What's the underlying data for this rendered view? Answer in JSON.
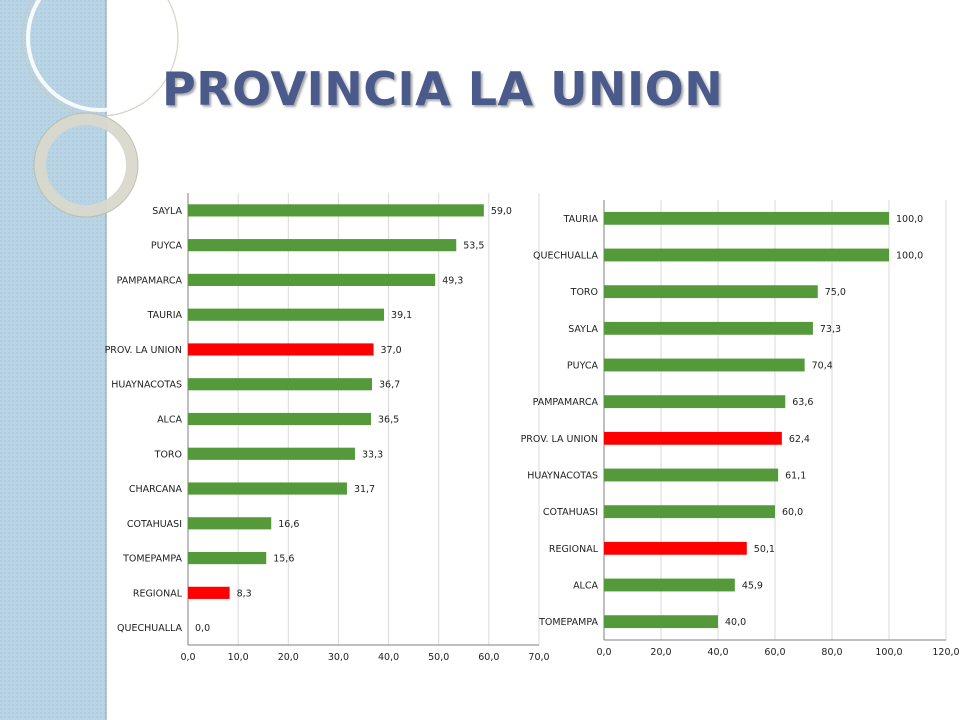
{
  "page": {
    "title": "PROVINCIA LA UNION"
  },
  "colors": {
    "green": "#54993a",
    "red": "#ff0000",
    "grid": "#d9d9d9",
    "axis": "#7f7f7f",
    "title": "#4a5a8a"
  },
  "chart_data": [
    {
      "type": "bar",
      "orientation": "horizontal",
      "title": "",
      "xlabel": "",
      "ylabel": "",
      "xlim": [
        0,
        70
      ],
      "tick_step": 10,
      "tick_labels": [
        "0,0",
        "10,0",
        "20,0",
        "30,0",
        "40,0",
        "50,0",
        "60,0",
        "70,0"
      ],
      "grid": true,
      "legend": "none",
      "categories": [
        "SAYLA",
        "PUYCA",
        "PAMPAMARCA",
        "TAURIA",
        "PROV. LA UNION",
        "HUAYNACOTAS",
        "ALCA",
        "TORO",
        "CHARCANA",
        "COTAHUASI",
        "TOMEPAMPA",
        "REGIONAL",
        "QUECHUALLA"
      ],
      "values": [
        59.0,
        53.5,
        49.3,
        39.1,
        37.0,
        36.7,
        36.5,
        33.3,
        31.7,
        16.6,
        15.6,
        8.3,
        0.0
      ],
      "value_labels": [
        "59,0",
        "53,5",
        "49,3",
        "39,1",
        "37,0",
        "36,7",
        "36,5",
        "33,3",
        "31,7",
        "16,6",
        "15,6",
        "8,3",
        "0,0"
      ],
      "highlight": [
        "PROV. LA UNION",
        "REGIONAL"
      ]
    },
    {
      "type": "bar",
      "orientation": "horizontal",
      "title": "",
      "xlabel": "",
      "ylabel": "",
      "xlim": [
        0,
        120
      ],
      "tick_step": 20,
      "tick_labels": [
        "0,0",
        "20,0",
        "40,0",
        "60,0",
        "80,0",
        "100,0",
        "120,0"
      ],
      "grid": true,
      "legend": "none",
      "categories": [
        "TAURIA",
        "QUECHUALLA",
        "TORO",
        "SAYLA",
        "PUYCA",
        "PAMPAMARCA",
        "PROV. LA UNION",
        "HUAYNACOTAS",
        "COTAHUASI",
        "REGIONAL",
        "ALCA",
        "TOMEPAMPA"
      ],
      "values": [
        100.0,
        100.0,
        75.0,
        73.3,
        70.4,
        63.6,
        62.4,
        61.1,
        60.0,
        50.1,
        45.9,
        40.0
      ],
      "value_labels": [
        "100,0",
        "100,0",
        "75,0",
        "73,3",
        "70,4",
        "63,6",
        "62,4",
        "61,1",
        "60,0",
        "50,1",
        "45,9",
        "40,0"
      ],
      "highlight": [
        "PROV. LA UNION",
        "REGIONAL"
      ]
    }
  ]
}
